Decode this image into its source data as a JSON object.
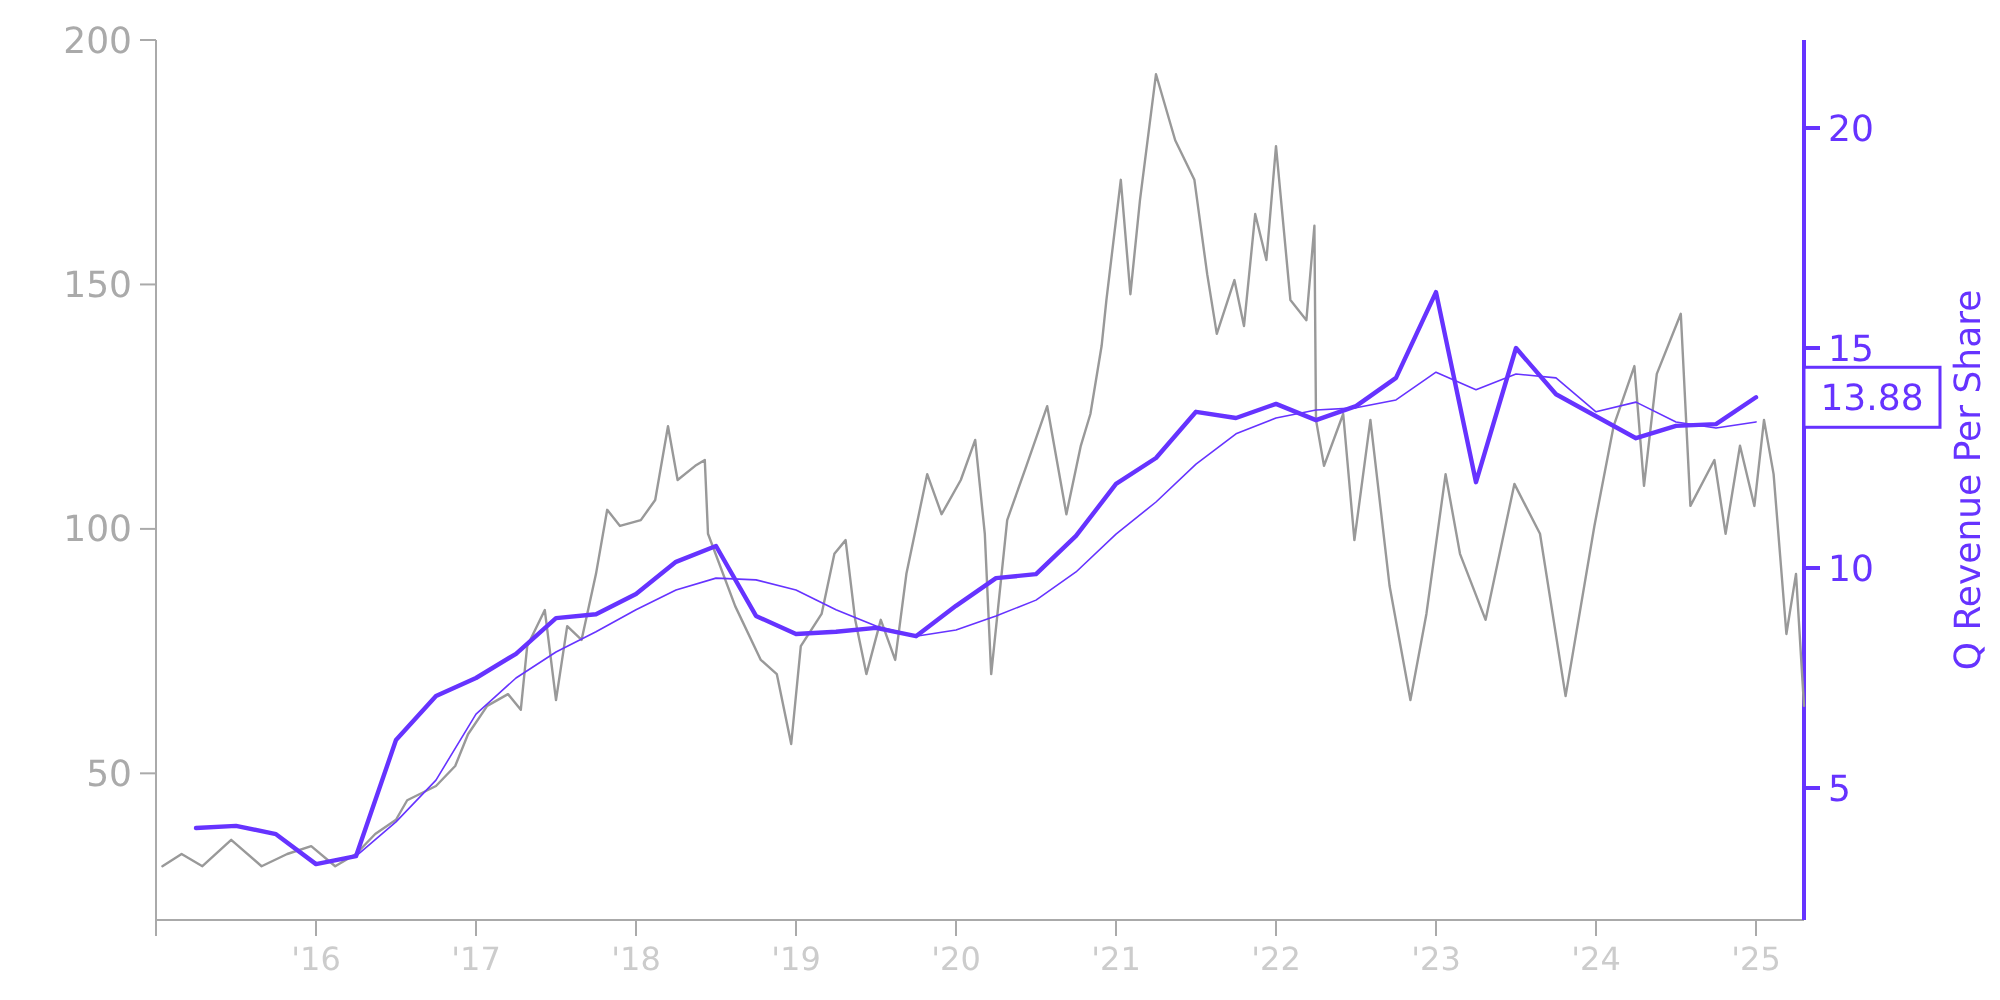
{
  "chart_data": {
    "type": "line",
    "y2label": "Q Revenue Per Share",
    "xlim": [
      2015,
      2025.3
    ],
    "ylim": [
      20,
      200
    ],
    "y2lim": [
      2,
      22
    ],
    "xticks": [
      {
        "value": 2015,
        "label": null
      },
      {
        "value": 2016,
        "label": "'16"
      },
      {
        "value": 2017,
        "label": "'17"
      },
      {
        "value": 2018,
        "label": "'18"
      },
      {
        "value": 2019,
        "label": "'19"
      },
      {
        "value": 2020,
        "label": "'20"
      },
      {
        "value": 2021,
        "label": "'21"
      },
      {
        "value": 2022,
        "label": "'22"
      },
      {
        "value": 2023,
        "label": "'23"
      },
      {
        "value": 2024,
        "label": "'24"
      },
      {
        "value": 2025,
        "label": "'25"
      }
    ],
    "yticks": [
      50,
      100,
      150,
      200
    ],
    "y2ticks": [
      5,
      10,
      15,
      20
    ],
    "grid": false,
    "marker": "none",
    "annotations": [
      "13.88"
    ],
    "series": [
      {
        "color": "#999999",
        "x": [
          2015.04,
          2015.16,
          2015.29,
          2015.47,
          2015.66,
          2015.82,
          2015.97,
          2016.12,
          2016.25,
          2016.37,
          2016.5,
          2016.57,
          2016.75,
          2016.87,
          2016.95,
          2017.07,
          2017.2,
          2017.28,
          2017.32,
          2017.43,
          2017.5,
          2017.57,
          2017.66,
          2017.75,
          2017.82,
          2017.9,
          2018.03,
          2018.12,
          2018.2,
          2018.26,
          2018.37,
          2018.43,
          2018.45,
          2018.62,
          2018.78,
          2018.88,
          2018.97,
          2019.03,
          2019.16,
          2019.24,
          2019.31,
          2019.37,
          2019.44,
          2019.53,
          2019.62,
          2019.69,
          2019.82,
          2019.91,
          2020.03,
          2020.12,
          2020.18,
          2020.22,
          2020.32,
          2020.44,
          2020.57,
          2020.69,
          2020.78,
          2020.84,
          2020.91,
          2020.94,
          2021.03,
          2021.09,
          2021.15,
          2021.25,
          2021.37,
          2021.49,
          2021.57,
          2021.63,
          2021.74,
          2021.8,
          2021.87,
          2021.94,
          2022,
          2022.09,
          2022.19,
          2022.24,
          2022.25,
          2022.3,
          2022.42,
          2022.49,
          2022.59,
          2022.71,
          2022.84,
          2022.94,
          2023.06,
          2023.15,
          2023.31,
          2023.49,
          2023.65,
          2023.81,
          2023.99,
          2024.11,
          2024.24,
          2024.3,
          2024.38,
          2024.53,
          2024.59,
          2024.74,
          2024.81,
          2024.9,
          2024.99,
          2025.05,
          2025.11,
          2025.19,
          2025.25,
          2025.3
        ],
        "values": [
          31,
          33.5,
          31,
          36.4,
          31,
          33.5,
          35.1,
          31,
          33.5,
          37.6,
          40.5,
          44.5,
          47.4,
          51.5,
          58,
          63.8,
          66.2,
          63,
          76,
          83.4,
          65,
          80.1,
          77.3,
          90.8,
          103.9,
          100.6,
          101.8,
          105.9,
          121,
          110,
          112.9,
          114.1,
          99,
          84.2,
          73.2,
          70.3,
          56,
          76,
          82.6,
          94.9,
          97.7,
          81.4,
          70.3,
          81.4,
          73.2,
          90.8,
          111.2,
          103,
          110,
          118.2,
          99,
          70.3,
          101.8,
          112.9,
          125.1,
          103,
          117,
          123.5,
          137.4,
          146.8,
          171.4,
          148,
          167.3,
          193,
          179.5,
          171.4,
          152.1,
          139.9,
          150.9,
          141.5,
          164.4,
          155,
          178.3,
          146.8,
          142.7,
          162,
          122.3,
          112.9,
          123.5,
          97.7,
          122.3,
          88.3,
          65,
          82.6,
          111.2,
          94.9,
          81.4,
          109.2,
          99,
          65.8,
          100.6,
          121,
          133.3,
          108.8,
          131.7,
          144,
          104.7,
          114.1,
          99,
          117,
          104.7,
          122.3,
          111.2,
          78.5,
          90.8,
          63.8
        ]
      },
      {
        "color": "#6633ff",
        "axis": "y2",
        "x": [
          2015.25,
          2015.5,
          2015.75,
          2016,
          2016.25,
          2016.5,
          2016.75,
          2017,
          2017.25,
          2017.5,
          2017.75,
          2018,
          2018.25,
          2018.5,
          2018.75,
          2019,
          2019.25,
          2019.5,
          2019.75,
          2020,
          2020.25,
          2020.5,
          2020.75,
          2021,
          2021.25,
          2021.5,
          2021.75,
          2022,
          2022.25,
          2022.5,
          2022.75,
          2023,
          2023.25,
          2023.5,
          2023.75,
          2024,
          2024.25,
          2024.5,
          2024.75,
          2025
        ],
        "values": [
          4.09,
          4.14,
          3.95,
          3.27,
          3.45,
          6.09,
          7.09,
          7.5,
          8.05,
          8.86,
          8.95,
          9.41,
          10.14,
          10.5,
          8.91,
          8.5,
          8.55,
          8.64,
          8.45,
          9.14,
          9.77,
          9.86,
          10.73,
          11.91,
          12.5,
          13.55,
          13.41,
          13.73,
          13.36,
          13.68,
          14.32,
          16.27,
          11.95,
          15,
          13.95,
          13.45,
          12.95,
          13.23,
          13.27,
          13.88
        ]
      },
      {
        "color": "#6633ff",
        "axis": "y2",
        "x": [
          2016.25,
          2016.5,
          2016.75,
          2017,
          2017.25,
          2017.5,
          2017.75,
          2018,
          2018.25,
          2018.5,
          2018.75,
          2019,
          2019.25,
          2019.5,
          2019.75,
          2020,
          2020.25,
          2020.5,
          2020.75,
          2021,
          2021.25,
          2021.5,
          2021.75,
          2022,
          2022.25,
          2022.5,
          2022.75,
          2023,
          2023.25,
          2023.5,
          2023.75,
          2024,
          2024.25,
          2024.5,
          2024.75,
          2025
        ],
        "values": [
          3.45,
          4.23,
          5.18,
          6.68,
          7.5,
          8.09,
          8.55,
          9.05,
          9.5,
          9.77,
          9.73,
          9.5,
          9.05,
          8.68,
          8.45,
          8.59,
          8.91,
          9.27,
          9.91,
          10.77,
          11.5,
          12.36,
          13.05,
          13.41,
          13.59,
          13.64,
          13.82,
          14.45,
          14.05,
          14.41,
          14.32,
          13.55,
          13.77,
          13.32,
          13.18,
          13.32
        ]
      }
    ]
  }
}
